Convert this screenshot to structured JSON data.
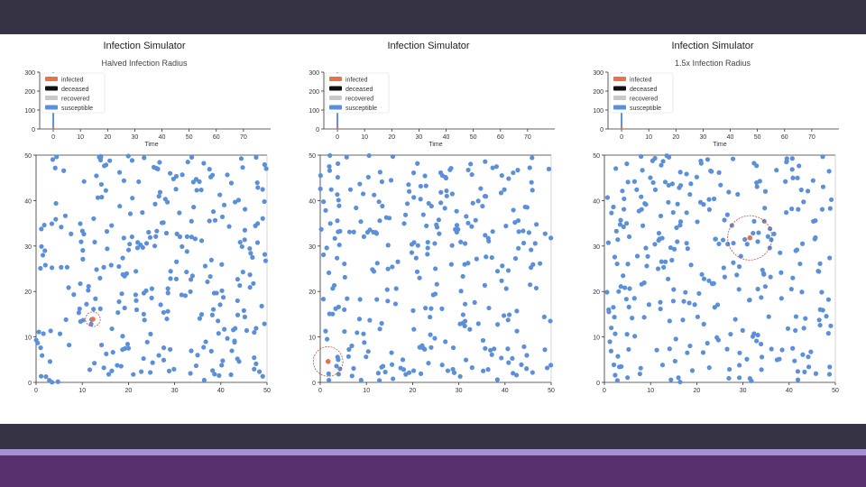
{
  "chart_data": [
    {
      "type": "scatter",
      "title": "Infection Simulator",
      "subtitle": "Halved Infection Radius",
      "line_chart": {
        "xlabel": "Time",
        "xticks": [
          0,
          10,
          20,
          30,
          40,
          50,
          60,
          70
        ],
        "yticks": [
          0,
          100,
          200,
          300
        ],
        "xlim": [
          -5,
          80
        ],
        "ylim": [
          0,
          300
        ],
        "legend": [
          "infected",
          "deceased",
          "recovered",
          "susceptible"
        ],
        "legend_position": "top-left",
        "series_at_t0": {
          "infected": 1,
          "deceased": 0,
          "recovered": 0,
          "susceptible": 299
        }
      },
      "scatter": {
        "xlim": [
          0,
          50
        ],
        "ylim": [
          0,
          50
        ],
        "xticks": [
          0,
          10,
          20,
          30,
          40,
          50
        ],
        "yticks": [
          0,
          10,
          20,
          30,
          40,
          50
        ],
        "infected": [
          [
            12.3,
            13.9
          ]
        ],
        "infection_circle_radius": 1.0,
        "susceptible_count": 299,
        "susceptible_seed": 11
      }
    },
    {
      "type": "scatter",
      "title": "Infection Simulator",
      "subtitle": "",
      "line_chart": {
        "xlabel": "Time",
        "xticks": [
          0,
          10,
          20,
          30,
          40,
          50,
          60,
          70
        ],
        "yticks": [
          0,
          100,
          200,
          300
        ],
        "xlim": [
          -5,
          80
        ],
        "ylim": [
          0,
          300
        ],
        "legend": [
          "infected",
          "deceased",
          "recovered",
          "susceptible"
        ],
        "legend_position": "top-left",
        "series_at_t0": {
          "infected": 1,
          "deceased": 0,
          "recovered": 0,
          "susceptible": 299
        }
      },
      "scatter": {
        "xlim": [
          0,
          50
        ],
        "ylim": [
          0,
          50
        ],
        "xticks": [
          0,
          10,
          20,
          30,
          40,
          50
        ],
        "yticks": [
          0,
          10,
          20,
          30,
          40,
          50
        ],
        "infected": [
          [
            1.7,
            4.6
          ]
        ],
        "infection_circle_radius": 2.0,
        "susceptible_count": 299,
        "susceptible_seed": 23
      }
    },
    {
      "type": "scatter",
      "title": "Infection Simulator",
      "subtitle": "1.5x Infection Radius",
      "line_chart": {
        "xlabel": "Time",
        "xticks": [
          0,
          10,
          20,
          30,
          40,
          50,
          60,
          70
        ],
        "yticks": [
          0,
          100,
          200,
          300
        ],
        "xlim": [
          -5,
          80
        ],
        "ylim": [
          0,
          300
        ],
        "legend": [
          "infected",
          "deceased",
          "recovered",
          "susceptible"
        ],
        "legend_position": "top-left",
        "series_at_t0": {
          "infected": 1,
          "deceased": 0,
          "recovered": 0,
          "susceptible": 299
        }
      },
      "scatter": {
        "xlim": [
          0,
          50
        ],
        "ylim": [
          0,
          50
        ],
        "xticks": [
          0,
          10,
          20,
          30,
          40,
          50
        ],
        "yticks": [
          0,
          10,
          20,
          30,
          40,
          50
        ],
        "infected": [
          [
            31.5,
            31.8
          ]
        ],
        "infection_circle_radius": 3.0,
        "susceptible_count": 299,
        "susceptible_seed": 37
      }
    }
  ],
  "colors": {
    "infected": "#e8734a",
    "deceased": "#111111",
    "recovered": "#c8c8c8",
    "susceptible": "#5b8fd9",
    "circle": "#c0392b"
  }
}
